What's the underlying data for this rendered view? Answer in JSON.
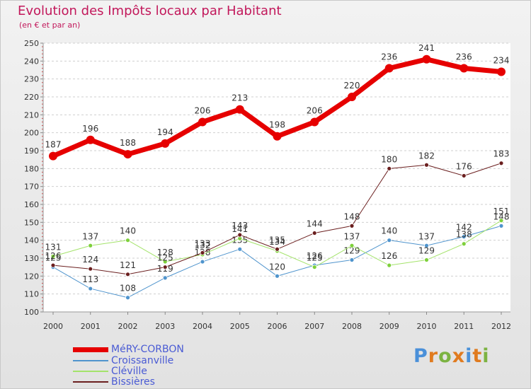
{
  "title": "Evolution des Impôts locaux par Habitant",
  "subtitle": "(en € et par an)",
  "logo": {
    "letters": [
      "P",
      "r",
      "o",
      "x",
      "i",
      "t",
      "i"
    ],
    "colors": [
      "#4a90d9",
      "#e07b1f",
      "#7cb342",
      "#e07b1f",
      "#4a90d9",
      "#e07b1f",
      "#7cb342"
    ]
  },
  "chart_data": {
    "type": "line",
    "x": [
      "2000",
      "2001",
      "2002",
      "2003",
      "2004",
      "2005",
      "2006",
      "2007",
      "2008",
      "2009",
      "2010",
      "2011",
      "2012"
    ],
    "ylim": [
      100,
      250
    ],
    "yticks": [
      100,
      110,
      120,
      130,
      140,
      150,
      160,
      170,
      180,
      190,
      200,
      210,
      220,
      230,
      240,
      250
    ],
    "series": [
      {
        "name": "MéRY-CORBON",
        "color": "#e60000",
        "marker": "#e60000",
        "width": 7,
        "radius": 6,
        "values": [
          187,
          196,
          188,
          194,
          206,
          213,
          198,
          206,
          220,
          236,
          241,
          236,
          234
        ]
      },
      {
        "name": "Croissanville",
        "color": "#4f94cd",
        "marker": "#4f94cd",
        "width": 1,
        "radius": 3,
        "values": [
          125,
          113,
          108,
          119,
          128,
          135,
          120,
          126,
          129,
          140,
          137,
          142,
          148
        ]
      },
      {
        "name": "Cléville",
        "color": "#a4e36b",
        "marker": "#7ed03b",
        "width": 1,
        "radius": 3,
        "values": [
          131,
          137,
          140,
          128,
          132,
          141,
          134,
          125,
          137,
          126,
          129,
          138,
          151
        ]
      },
      {
        "name": "Bissières",
        "color": "#6b1f1f",
        "marker": "#6b1f1f",
        "width": 1,
        "radius": 3,
        "values": [
          126,
          124,
          121,
          125,
          133,
          143,
          135,
          144,
          148,
          180,
          182,
          176,
          183
        ]
      }
    ]
  }
}
